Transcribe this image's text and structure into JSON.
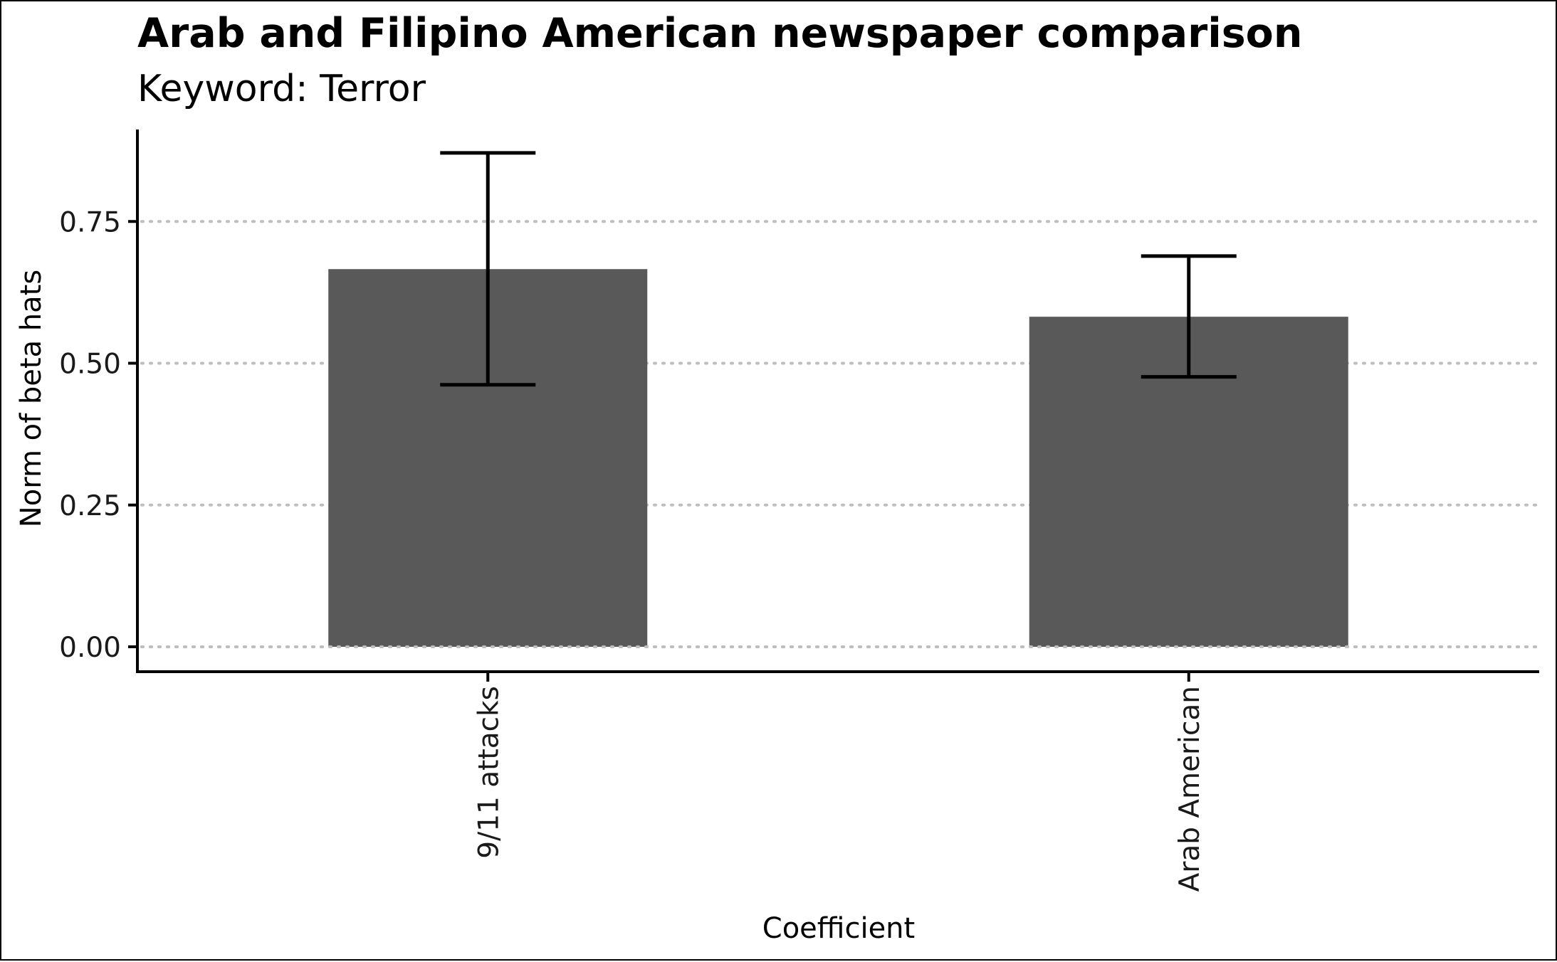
{
  "chart_data": {
    "type": "bar",
    "title": "Arab and Filipino American newspaper comparison",
    "subtitle": "Keyword: Terror",
    "xlabel": "Coefficient",
    "ylabel": "Norm of beta hats",
    "categories": [
      "9/11 attacks",
      "Arab American"
    ],
    "values": [
      0.666,
      0.582
    ],
    "error_low": [
      0.462,
      0.476
    ],
    "error_high": [
      0.871,
      0.689
    ],
    "ylim": [
      0,
      0.9
    ],
    "yticks": [
      "0.00",
      "0.25",
      "0.50",
      "0.75"
    ],
    "ytick_values": [
      0,
      0.25,
      0.5,
      0.75
    ],
    "grid": "horizontal dotted",
    "legend": "none",
    "colors": {
      "bar": "#595959",
      "errorbar": "#000000",
      "grid": "#bebebe"
    }
  }
}
